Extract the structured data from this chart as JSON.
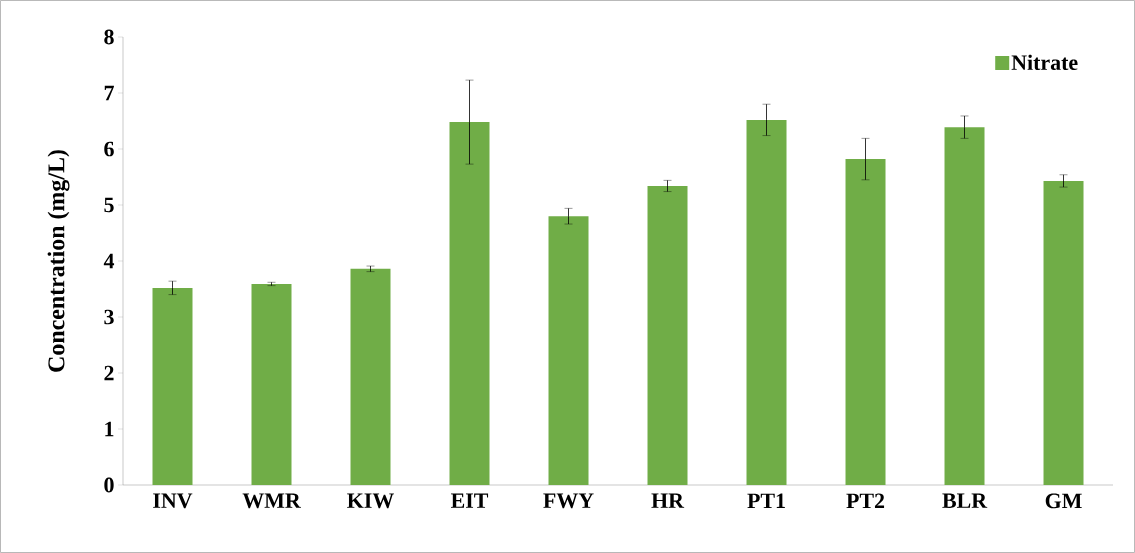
{
  "chart_data": {
    "type": "bar",
    "ylabel": "Concentration (mg/L)",
    "categories": [
      "INV",
      "WMR",
      "KIW",
      "EIT",
      "FWY",
      "HR",
      "PT1",
      "PT2",
      "BLR",
      "GM"
    ],
    "series": [
      {
        "name": "Nitrate",
        "color": "#70ad47",
        "values": [
          3.52,
          3.59,
          3.86,
          6.48,
          4.8,
          5.34,
          6.52,
          5.82,
          6.39,
          5.43
        ],
        "errors": [
          0.12,
          0.03,
          0.05,
          0.75,
          0.14,
          0.1,
          0.28,
          0.37,
          0.2,
          0.11
        ]
      }
    ],
    "ylim": [
      0,
      8
    ],
    "yticks": [
      0,
      1,
      2,
      3,
      4,
      5,
      6,
      7,
      8
    ],
    "grid": false,
    "legend": "top right"
  }
}
